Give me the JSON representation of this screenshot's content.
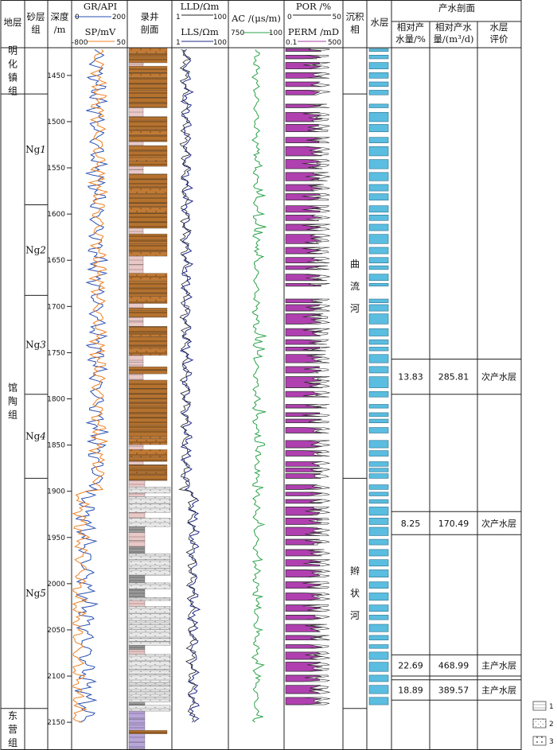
{
  "headers": {
    "stratum": "地层",
    "sand_group": [
      "砂层",
      "组"
    ],
    "depth": [
      "深度",
      "/m"
    ],
    "gr": {
      "label": "GR/API",
      "min": "0",
      "max": "200"
    },
    "sp": {
      "label": "SP/mV",
      "min": "-800",
      "max": "50"
    },
    "lithology": [
      "录井",
      "剖面"
    ],
    "lld": {
      "label": "LLD/Ωm",
      "min": "1",
      "max": "100"
    },
    "lls": {
      "label": "LLS/Ωm",
      "min": "1",
      "max": "100"
    },
    "ac": {
      "label": "AC /(μs/m)",
      "min": "750",
      "max": "100"
    },
    "por": {
      "label": "POR /%",
      "min": "0",
      "max": "50"
    },
    "perm": {
      "label": "PERM /mD",
      "min": "0.1",
      "max": "500"
    },
    "facies": [
      "沉积",
      "相"
    ],
    "water_layer": "水层",
    "production_profile": "产水剖面",
    "rel_pct": [
      "相对产",
      "水量/%"
    ],
    "rel_vol": [
      "相对产水",
      "量/(m³/d)"
    ],
    "evaluation": [
      "水层",
      "评价"
    ]
  },
  "depth_axis": {
    "top": 1420,
    "bottom": 2180,
    "ticks": [
      1450,
      1500,
      1550,
      1600,
      1650,
      1700,
      1750,
      1800,
      1850,
      1900,
      1950,
      2000,
      2050,
      2100,
      2150
    ]
  },
  "formations": [
    {
      "name": "明化镇组",
      "top": 1420,
      "bottom": 1470
    },
    {
      "name": "馆陶组",
      "top": 1470,
      "bottom": 2135
    },
    {
      "name": "东营组",
      "top": 2135,
      "bottom": 2180
    }
  ],
  "sand_groups": [
    {
      "name_prefix": "Ng",
      "name_num": "1",
      "top": 1470,
      "bottom": 1590
    },
    {
      "name_prefix": "Ng",
      "name_num": "2",
      "top": 1590,
      "bottom": 1688
    },
    {
      "name_prefix": "Ng",
      "name_num": "3",
      "top": 1688,
      "bottom": 1795
    },
    {
      "name_prefix": "Ng",
      "name_num": "4",
      "top": 1795,
      "bottom": 1886
    },
    {
      "name_prefix": "Ng",
      "name_num": "5",
      "top": 1886,
      "bottom": 2135
    }
  ],
  "facies": [
    {
      "name": [
        "曲",
        "流",
        "河"
      ],
      "top": 1470,
      "bottom": 1886
    },
    {
      "name": [
        "辫",
        "状",
        "河"
      ],
      "top": 1886,
      "bottom": 2135
    }
  ],
  "production": [
    {
      "pct": "13.83",
      "vol": "285.81",
      "eval": "次产水层",
      "top": 1757,
      "bottom": 1795
    },
    {
      "pct": "8.25",
      "vol": "170.49",
      "eval": "次产水层",
      "top": 1922,
      "bottom": 1947
    },
    {
      "pct": "22.69",
      "vol": "468.99",
      "eval": "主产水层",
      "top": 2077,
      "bottom": 2100
    },
    {
      "pct": "18.89",
      "vol": "389.57",
      "eval": "主产水层",
      "top": 2104,
      "bottom": 2126
    }
  ],
  "water_layers": [
    [
      1421,
      1424
    ],
    [
      1428,
      1432
    ],
    [
      1436,
      1443
    ],
    [
      1447,
      1453
    ],
    [
      1457,
      1462
    ],
    [
      1466,
      1471
    ],
    [
      1481,
      1485
    ],
    [
      1490,
      1500
    ],
    [
      1503,
      1511
    ],
    [
      1517,
      1523
    ],
    [
      1527,
      1537
    ],
    [
      1541,
      1551
    ],
    [
      1555,
      1564
    ],
    [
      1568,
      1575
    ],
    [
      1578,
      1585
    ],
    [
      1591,
      1598
    ],
    [
      1601,
      1607
    ],
    [
      1611,
      1618
    ],
    [
      1622,
      1632
    ],
    [
      1636,
      1643
    ],
    [
      1647,
      1653
    ],
    [
      1656,
      1660
    ],
    [
      1665,
      1672
    ],
    [
      1675,
      1678
    ],
    [
      1692,
      1696
    ],
    [
      1698,
      1705
    ],
    [
      1708,
      1719
    ],
    [
      1724,
      1732
    ],
    [
      1736,
      1741
    ],
    [
      1744,
      1748
    ],
    [
      1752,
      1761
    ],
    [
      1765,
      1772
    ],
    [
      1776,
      1788
    ],
    [
      1792,
      1798
    ],
    [
      1806,
      1810
    ],
    [
      1815,
      1819
    ],
    [
      1822,
      1826
    ],
    [
      1831,
      1837
    ],
    [
      1845,
      1853
    ],
    [
      1856,
      1862
    ],
    [
      1868,
      1873
    ],
    [
      1875,
      1879
    ],
    [
      1881,
      1886
    ],
    [
      1893,
      1898
    ],
    [
      1901,
      1905
    ],
    [
      1909,
      1913
    ],
    [
      1917,
      1926
    ],
    [
      1929,
      1936
    ],
    [
      1939,
      1948
    ],
    [
      1952,
      1958
    ],
    [
      1963,
      1970
    ],
    [
      1974,
      1981
    ],
    [
      1985,
      1993
    ],
    [
      1998,
      2005
    ],
    [
      2010,
      2018
    ],
    [
      2023,
      2030
    ],
    [
      2034,
      2039
    ],
    [
      2044,
      2052
    ],
    [
      2056,
      2061
    ],
    [
      2066,
      2070
    ],
    [
      2074,
      2082
    ],
    [
      2085,
      2095
    ],
    [
      2099,
      2106
    ],
    [
      2110,
      2119
    ],
    [
      2123,
      2131
    ]
  ],
  "legend": [
    "1",
    "2",
    "3"
  ]
}
